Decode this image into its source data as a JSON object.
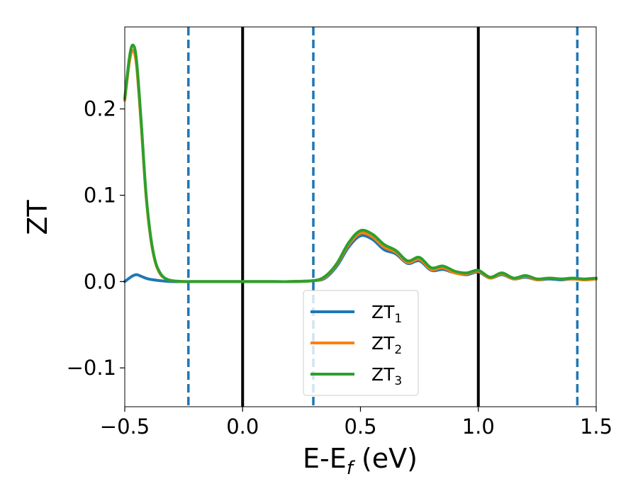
{
  "chart_data": {
    "type": "line",
    "xlabel": {
      "main": "E-E",
      "sub": "f",
      "unit": " (eV)"
    },
    "ylabel": "ZT",
    "xlim": [
      -0.5,
      1.5
    ],
    "ylim": [
      -0.145,
      0.295
    ],
    "xticks": [
      -0.5,
      0.0,
      0.5,
      1.0,
      1.5
    ],
    "xtick_labels": [
      "−0.5",
      "0.0",
      "0.5",
      "1.0",
      "1.5"
    ],
    "yticks": [
      -0.1,
      0.0,
      0.1,
      0.2
    ],
    "ytick_labels": [
      "−0.1",
      "0.0",
      "0.1",
      "0.2"
    ],
    "grid": false,
    "legend_position": "lower-center",
    "vlines": [
      {
        "x": -0.23,
        "style": "dashed",
        "color": "#1f77b4"
      },
      {
        "x": 0.0,
        "style": "solid",
        "color": "#000000"
      },
      {
        "x": 0.3,
        "style": "dashed",
        "color": "#1f77b4"
      },
      {
        "x": 1.0,
        "style": "solid",
        "color": "#000000"
      },
      {
        "x": 1.42,
        "style": "dashed",
        "color": "#1f77b4"
      }
    ],
    "series": [
      {
        "name": "ZT",
        "sub": "1",
        "color": "#1f77b4",
        "x": [
          -0.5,
          -0.47,
          -0.45,
          -0.43,
          -0.4,
          -0.35,
          -0.3,
          -0.25,
          -0.2,
          -0.1,
          0.0,
          0.1,
          0.2,
          0.3,
          0.35,
          0.4,
          0.45,
          0.5,
          0.55,
          0.6,
          0.65,
          0.7,
          0.75,
          0.8,
          0.85,
          0.9,
          0.95,
          1.0,
          1.05,
          1.1,
          1.15,
          1.2,
          1.25,
          1.3,
          1.35,
          1.4,
          1.45,
          1.5
        ],
        "y": [
          0.0,
          0.006,
          0.008,
          0.006,
          0.003,
          0.001,
          0.0,
          0.0,
          0.0,
          0.0,
          0.0,
          0.0,
          0.0,
          0.001,
          0.004,
          0.018,
          0.04,
          0.053,
          0.049,
          0.037,
          0.032,
          0.021,
          0.024,
          0.013,
          0.014,
          0.01,
          0.008,
          0.011,
          0.004,
          0.008,
          0.003,
          0.005,
          0.002,
          0.003,
          0.002,
          0.003,
          0.002,
          0.003
        ]
      },
      {
        "name": "ZT",
        "sub": "2",
        "color": "#ff7f0e",
        "x": [
          -0.5,
          -0.48,
          -0.465,
          -0.45,
          -0.43,
          -0.41,
          -0.39,
          -0.37,
          -0.35,
          -0.33,
          -0.3,
          -0.25,
          -0.2,
          -0.1,
          0.0,
          0.1,
          0.2,
          0.3,
          0.35,
          0.4,
          0.45,
          0.5,
          0.55,
          0.6,
          0.65,
          0.7,
          0.75,
          0.8,
          0.85,
          0.9,
          0.95,
          1.0,
          1.05,
          1.1,
          1.15,
          1.2,
          1.25,
          1.3,
          1.35,
          1.4,
          1.45,
          1.5
        ],
        "y": [
          0.21,
          0.255,
          0.268,
          0.25,
          0.18,
          0.1,
          0.05,
          0.022,
          0.009,
          0.004,
          0.001,
          0.0,
          0.0,
          0.0,
          0.0,
          0.0,
          0.0,
          0.001,
          0.005,
          0.02,
          0.043,
          0.056,
          0.052,
          0.04,
          0.034,
          0.022,
          0.026,
          0.014,
          0.016,
          0.01,
          0.009,
          0.012,
          0.004,
          0.009,
          0.003,
          0.006,
          0.002,
          0.004,
          0.003,
          0.003,
          0.002,
          0.003
        ]
      },
      {
        "name": "ZT",
        "sub": "3",
        "color": "#2ca02c",
        "x": [
          -0.5,
          -0.48,
          -0.465,
          -0.45,
          -0.43,
          -0.41,
          -0.39,
          -0.37,
          -0.35,
          -0.33,
          -0.3,
          -0.25,
          -0.2,
          -0.1,
          0.0,
          0.1,
          0.2,
          0.3,
          0.35,
          0.4,
          0.45,
          0.5,
          0.55,
          0.6,
          0.65,
          0.7,
          0.75,
          0.8,
          0.85,
          0.9,
          0.95,
          1.0,
          1.05,
          1.1,
          1.15,
          1.2,
          1.25,
          1.3,
          1.35,
          1.4,
          1.45,
          1.5
        ],
        "y": [
          0.212,
          0.26,
          0.274,
          0.256,
          0.184,
          0.103,
          0.052,
          0.023,
          0.01,
          0.004,
          0.001,
          0.0,
          0.0,
          0.0,
          0.0,
          0.0,
          0.0,
          0.001,
          0.006,
          0.021,
          0.045,
          0.059,
          0.055,
          0.043,
          0.036,
          0.024,
          0.028,
          0.016,
          0.018,
          0.012,
          0.01,
          0.013,
          0.005,
          0.01,
          0.004,
          0.007,
          0.003,
          0.004,
          0.003,
          0.004,
          0.003,
          0.004
        ]
      }
    ]
  }
}
